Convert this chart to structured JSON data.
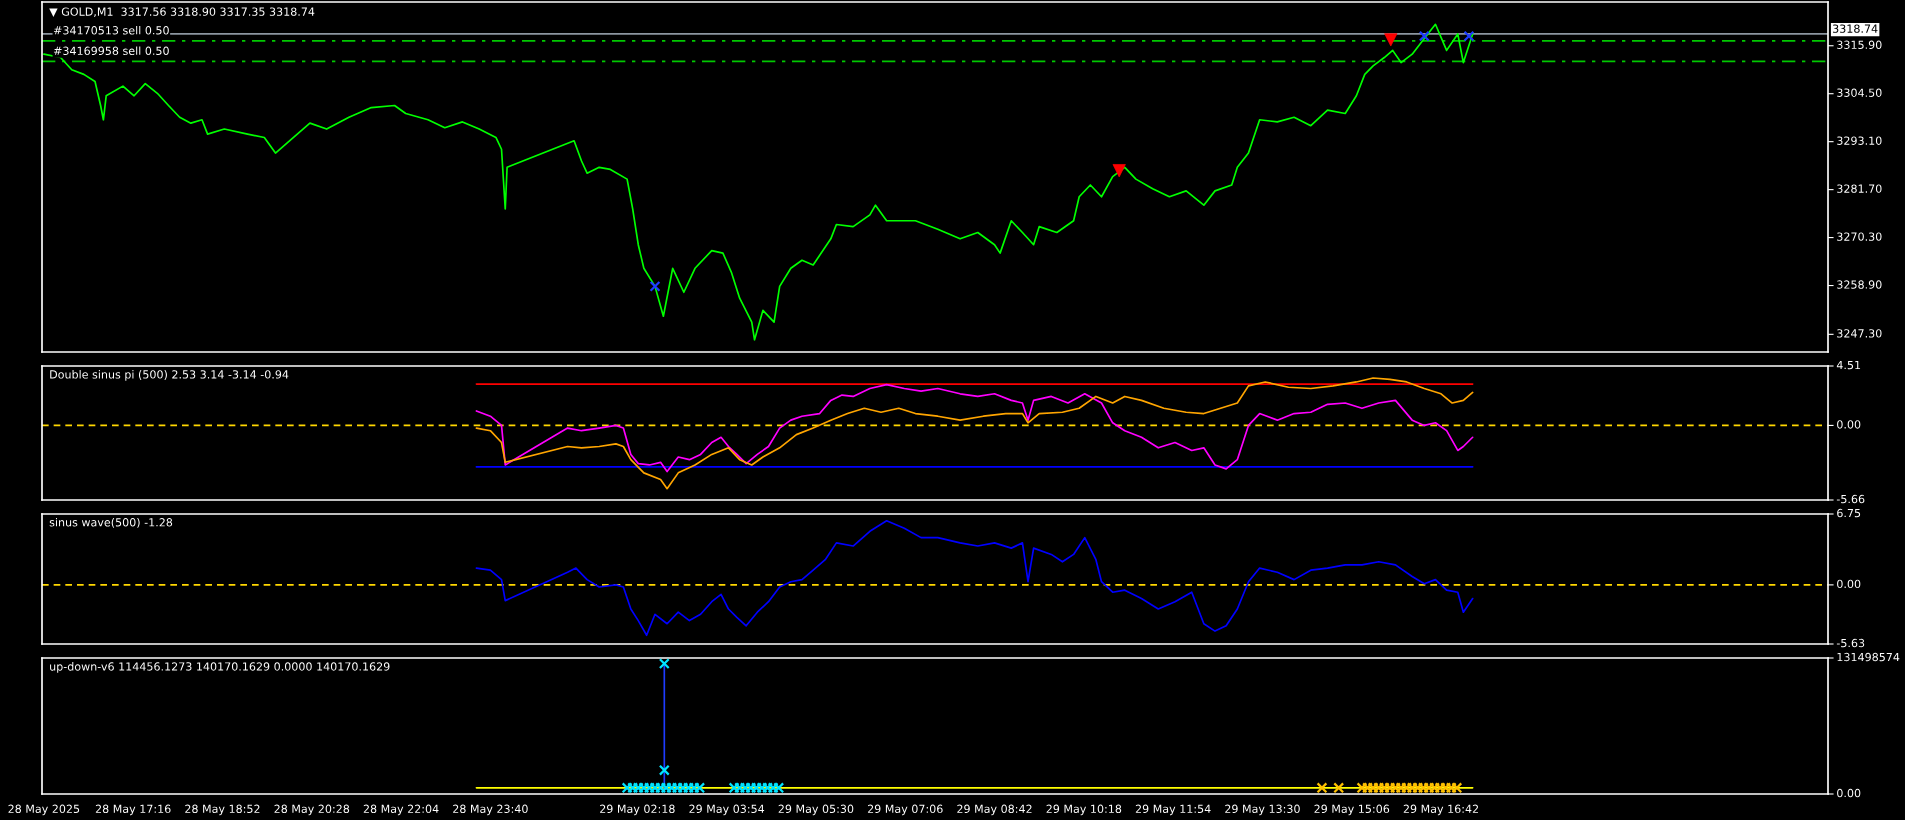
{
  "chart_data": [
    {
      "type": "line",
      "title": "▼ GOLD,M1  3317.56 3318.90 3317.35 3318.74",
      "xlim": [
        "2025-05-28T15:38",
        "2025-05-29T23:38"
      ],
      "ylim": [
        3243.1,
        3326.3
      ],
      "tick_labels": "y",
      "grid": false,
      "legend": false,
      "yticks": [
        {
          "value": 3315.9,
          "label": "3315.90"
        },
        {
          "value": 3304.5,
          "label": "3304.50"
        },
        {
          "value": 3293.1,
          "label": "3293.10"
        },
        {
          "value": 3281.7,
          "label": "3281.70"
        },
        {
          "value": 3270.3,
          "label": "3270.30"
        },
        {
          "value": 3258.9,
          "label": "3258.90"
        },
        {
          "value": 3247.3,
          "label": "3247.30"
        }
      ],
      "ref_lines": [
        {
          "axis": "y",
          "value": 3318.74,
          "label": "3318.74",
          "color": "#8c96a0",
          "line_style": "solid"
        },
        {
          "axis": "y",
          "value": 3317.07,
          "label": "#34170513 sell 0.50",
          "color": "#00c800",
          "line_style": "dashed"
        },
        {
          "axis": "y",
          "value": 3312.2,
          "label": "#34169958 sell 0.50",
          "color": "#00c800",
          "line_style": "dashed"
        }
      ],
      "series": [
        {
          "color": "#00ff00",
          "x": [
            "2025-05-28T15:40",
            "2025-05-28T15:58",
            "2025-05-28T16:10",
            "2025-05-28T16:23",
            "2025-05-28T16:35",
            "2025-05-28T16:41",
            "2025-05-28T16:44",
            "2025-05-28T16:47",
            "2025-05-28T17:05",
            "2025-05-28T17:17",
            "2025-05-28T17:29",
            "2025-05-28T17:42",
            "2025-05-28T17:54",
            "2025-05-28T18:06",
            "2025-05-28T18:18",
            "2025-05-28T18:30",
            "2025-05-28T18:36",
            "2025-05-28T18:54",
            "2025-05-28T19:19",
            "2025-05-28T19:37",
            "2025-05-28T19:49",
            "2025-05-28T20:01",
            "2025-05-28T20:26",
            "2025-05-28T20:44",
            "2025-05-28T21:08",
            "2025-05-28T21:32",
            "2025-05-28T21:57",
            "2025-05-28T22:09",
            "2025-05-28T22:33",
            "2025-05-28T22:51",
            "2025-05-28T23:10",
            "2025-05-28T23:28",
            "2025-05-28T23:46",
            "2025-05-28T23:52",
            "2025-05-28T23:56",
            "2025-05-28T23:58",
            "2025-05-29T01:10",
            "2025-05-29T01:18",
            "2025-05-29T01:24",
            "2025-05-29T01:37",
            "2025-05-29T01:49",
            "2025-05-29T02:07",
            "2025-05-29T02:13",
            "2025-05-29T02:19",
            "2025-05-29T02:25",
            "2025-05-29T02:37",
            "2025-05-29T02:46",
            "2025-05-29T02:56",
            "2025-05-29T03:08",
            "2025-05-29T03:20",
            "2025-05-29T03:38",
            "2025-05-29T03:50",
            "2025-05-29T03:59",
            "2025-05-29T04:08",
            "2025-05-29T04:21",
            "2025-05-29T04:24",
            "2025-05-29T04:33",
            "2025-05-29T04:45",
            "2025-05-29T04:51",
            "2025-05-29T05:03",
            "2025-05-29T05:15",
            "2025-05-29T05:27",
            "2025-05-29T05:46",
            "2025-05-29T05:52",
            "2025-05-29T06:10",
            "2025-05-29T06:28",
            "2025-05-29T06:34",
            "2025-05-29T06:46",
            "2025-05-29T07:17",
            "2025-05-29T07:41",
            "2025-05-29T08:05",
            "2025-05-29T08:24",
            "2025-05-29T08:42",
            "2025-05-29T08:48",
            "2025-05-29T09:00",
            "2025-05-29T09:12",
            "2025-05-29T09:24",
            "2025-05-29T09:30",
            "2025-05-29T09:49",
            "2025-05-29T10:07",
            "2025-05-29T10:13",
            "2025-05-29T10:25",
            "2025-05-29T10:37",
            "2025-05-29T10:49",
            "2025-05-29T11:02",
            "2025-05-29T11:14",
            "2025-05-29T11:32",
            "2025-05-29T11:50",
            "2025-05-29T12:08",
            "2025-05-29T12:27",
            "2025-05-29T12:39",
            "2025-05-29T12:57",
            "2025-05-29T13:03",
            "2025-05-29T13:15",
            "2025-05-29T13:27",
            "2025-05-29T13:46",
            "2025-05-29T14:04",
            "2025-05-29T14:22",
            "2025-05-29T14:40",
            "2025-05-29T14:59",
            "2025-05-29T15:11",
            "2025-05-29T15:20",
            "2025-05-29T15:29",
            "2025-05-29T15:41",
            "2025-05-29T15:50",
            "2025-05-29T15:59",
            "2025-05-29T16:11",
            "2025-05-29T16:24",
            "2025-05-29T16:36",
            "2025-05-29T16:48",
            "2025-05-29T17:00",
            "2025-05-29T17:06",
            "2025-05-29T17:16"
          ],
          "values": [
            3313.9,
            3313.1,
            3310.2,
            3309.1,
            3307.4,
            3301.7,
            3298.3,
            3304.0,
            3306.3,
            3304.0,
            3306.9,
            3304.6,
            3301.7,
            3298.9,
            3297.5,
            3298.3,
            3294.9,
            3296.1,
            3294.9,
            3294.1,
            3290.4,
            3292.7,
            3297.5,
            3296.1,
            3298.9,
            3301.2,
            3301.7,
            3299.8,
            3298.3,
            3296.4,
            3297.8,
            3296.1,
            3294.1,
            3291.3,
            3277.1,
            3287.0,
            3293.3,
            3288.5,
            3285.6,
            3287.0,
            3286.5,
            3284.2,
            3277.1,
            3268.6,
            3263.0,
            3258.7,
            3251.6,
            3263.0,
            3257.3,
            3263.0,
            3267.2,
            3266.6,
            3262.1,
            3255.9,
            3250.2,
            3246.0,
            3253.0,
            3250.2,
            3258.7,
            3263.0,
            3264.9,
            3263.8,
            3270.0,
            3273.4,
            3272.9,
            3275.7,
            3278.0,
            3274.3,
            3274.3,
            3272.3,
            3270.0,
            3271.5,
            3268.6,
            3266.6,
            3274.3,
            3271.5,
            3268.6,
            3272.9,
            3271.5,
            3274.3,
            3280.0,
            3282.8,
            3280.0,
            3284.8,
            3287.0,
            3284.2,
            3281.9,
            3280.0,
            3281.4,
            3278.0,
            3281.4,
            3282.8,
            3287.0,
            3290.4,
            3298.3,
            3297.8,
            3298.9,
            3296.9,
            3300.6,
            3299.8,
            3304.0,
            3309.1,
            3311.1,
            3313.1,
            3314.8,
            3311.9,
            3313.9,
            3317.6,
            3321.0,
            3314.8,
            3318.7,
            3311.9,
            3318.7
          ]
        },
        {
          "type": "scatter",
          "color": "#ff0000",
          "marker": "triangle",
          "x": [
            "2025-05-29T10:56",
            "2025-05-29T15:48"
          ],
          "values": [
            3286.2,
            3317.3
          ]
        },
        {
          "type": "scatter",
          "color": "#1e3cff",
          "marker": "cross",
          "x": [
            "2025-05-29T02:37",
            "2025-05-29T16:24",
            "2025-05-29T17:12"
          ],
          "values": [
            3258.7,
            3318.2,
            3318.2
          ]
        }
      ]
    },
    {
      "type": "line",
      "title": "Double sinus pi (500) 2.53 3.14 -3.14 -0.94",
      "xlim": [
        "2025-05-28T15:38",
        "2025-05-29T23:38"
      ],
      "ylim": [
        -5.66,
        4.51
      ],
      "tick_labels": "y",
      "grid": false,
      "legend": false,
      "yticks": [
        4.51,
        {
          "value": 0,
          "label": "0.00"
        },
        -5.66
      ],
      "ref_lines": [
        {
          "axis": "y",
          "value": 0,
          "color": "#ffd700",
          "line_style": "dashed"
        }
      ],
      "series": [
        {
          "color": "#ff0000",
          "x": [
            "2025-05-28T23:25",
            "2025-05-29T17:16"
          ],
          "values": [
            3.14,
            3.14
          ]
        },
        {
          "color": "#0000ff",
          "x": [
            "2025-05-28T23:25",
            "2025-05-29T17:16"
          ],
          "values": [
            -3.14,
            -3.14
          ]
        },
        {
          "color": "#ff00ff",
          "x": [
            "2025-05-28T23:25",
            "2025-05-28T23:40",
            "2025-05-28T23:52",
            "2025-05-28T23:56",
            "2025-05-29T01:03",
            "2025-05-29T01:18",
            "2025-05-29T01:37",
            "2025-05-29T01:55",
            "2025-05-29T02:03",
            "2025-05-29T02:11",
            "2025-05-29T02:19",
            "2025-05-29T02:31",
            "2025-05-29T02:43",
            "2025-05-29T02:50",
            "2025-05-29T03:02",
            "2025-05-29T03:14",
            "2025-05-29T03:26",
            "2025-05-29T03:38",
            "2025-05-29T03:48",
            "2025-05-29T03:56",
            "2025-05-29T04:05",
            "2025-05-29T04:15",
            "2025-05-29T04:27",
            "2025-05-29T04:39",
            "2025-05-29T04:51",
            "2025-05-29T05:03",
            "2025-05-29T05:15",
            "2025-05-29T05:34",
            "2025-05-29T05:46",
            "2025-05-29T05:58",
            "2025-05-29T06:10",
            "2025-05-29T06:28",
            "2025-05-29T06:46",
            "2025-05-29T07:05",
            "2025-05-29T07:23",
            "2025-05-29T07:41",
            "2025-05-29T08:05",
            "2025-05-29T08:24",
            "2025-05-29T08:42",
            "2025-05-29T09:00",
            "2025-05-29T09:12",
            "2025-05-29T09:18",
            "2025-05-29T09:24",
            "2025-05-29T09:43",
            "2025-05-29T10:01",
            "2025-05-29T10:19",
            "2025-05-29T10:37",
            "2025-05-29T10:49",
            "2025-05-29T11:02",
            "2025-05-29T11:20",
            "2025-05-29T11:38",
            "2025-05-29T11:56",
            "2025-05-29T12:14",
            "2025-05-29T12:27",
            "2025-05-29T12:39",
            "2025-05-29T12:51",
            "2025-05-29T13:03",
            "2025-05-29T13:15",
            "2025-05-29T13:27",
            "2025-05-29T13:46",
            "2025-05-29T14:04",
            "2025-05-29T14:22",
            "2025-05-29T14:40",
            "2025-05-29T14:59",
            "2025-05-29T15:17",
            "2025-05-29T15:35",
            "2025-05-29T15:53",
            "2025-05-29T16:11",
            "2025-05-29T16:24",
            "2025-05-29T16:36",
            "2025-05-29T16:48",
            "2025-05-29T17:00",
            "2025-05-29T17:06",
            "2025-05-29T17:16"
          ],
          "values": [
            1.1,
            0.7,
            0,
            -3.0,
            -0.2,
            -0.4,
            -0.2,
            0,
            -0.2,
            -2.2,
            -2.9,
            -3.0,
            -2.8,
            -3.5,
            -2.4,
            -2.6,
            -2.2,
            -1.3,
            -0.9,
            -1.6,
            -2.2,
            -2.9,
            -2.2,
            -1.6,
            -0.2,
            0.4,
            0.7,
            0.9,
            1.9,
            2.3,
            2.2,
            2.8,
            3.1,
            2.8,
            2.6,
            2.8,
            2.4,
            2.2,
            2.4,
            1.9,
            1.7,
            0.4,
            1.9,
            2.2,
            1.7,
            2.4,
            1.7,
            0.2,
            -0.4,
            -0.9,
            -1.7,
            -1.3,
            -1.9,
            -1.7,
            -3.0,
            -3.3,
            -2.6,
            0,
            0.9,
            0.4,
            0.9,
            1.0,
            1.6,
            1.7,
            1.3,
            1.7,
            1.9,
            0.4,
            0,
            0.2,
            -0.4,
            -1.9,
            -1.6,
            -0.9
          ]
        },
        {
          "color": "#ffa500",
          "x": [
            "2025-05-28T23:25",
            "2025-05-28T23:40",
            "2025-05-28T23:52",
            "2025-05-28T23:56",
            "2025-05-29T01:03",
            "2025-05-29T01:18",
            "2025-05-29T01:37",
            "2025-05-29T01:55",
            "2025-05-29T02:03",
            "2025-05-29T02:11",
            "2025-05-29T02:25",
            "2025-05-29T02:43",
            "2025-05-29T02:50",
            "2025-05-29T03:02",
            "2025-05-29T03:20",
            "2025-05-29T03:38",
            "2025-05-29T03:56",
            "2025-05-29T04:08",
            "2025-05-29T04:21",
            "2025-05-29T04:33",
            "2025-05-29T04:51",
            "2025-05-29T05:09",
            "2025-05-29T05:27",
            "2025-05-29T05:46",
            "2025-05-29T06:04",
            "2025-05-29T06:22",
            "2025-05-29T06:40",
            "2025-05-29T06:59",
            "2025-05-29T07:17",
            "2025-05-29T07:41",
            "2025-05-29T08:05",
            "2025-05-29T08:30",
            "2025-05-29T08:54",
            "2025-05-29T09:12",
            "2025-05-29T09:18",
            "2025-05-29T09:30",
            "2025-05-29T09:55",
            "2025-05-29T10:13",
            "2025-05-29T10:31",
            "2025-05-29T10:49",
            "2025-05-29T11:02",
            "2025-05-29T11:20",
            "2025-05-29T11:44",
            "2025-05-29T12:08",
            "2025-05-29T12:27",
            "2025-05-29T12:45",
            "2025-05-29T13:03",
            "2025-05-29T13:15",
            "2025-05-29T13:33",
            "2025-05-29T13:58",
            "2025-05-29T14:22",
            "2025-05-29T14:46",
            "2025-05-29T15:11",
            "2025-05-29T15:29",
            "2025-05-29T15:47",
            "2025-05-29T16:05",
            "2025-05-29T16:24",
            "2025-05-29T16:42",
            "2025-05-29T16:54",
            "2025-05-29T17:06",
            "2025-05-29T17:16"
          ],
          "values": [
            -0.2,
            -0.4,
            -1.3,
            -2.8,
            -1.6,
            -1.7,
            -1.6,
            -1.4,
            -1.6,
            -2.6,
            -3.6,
            -4.1,
            -4.8,
            -3.6,
            -3.0,
            -2.2,
            -1.7,
            -2.6,
            -3.0,
            -2.4,
            -1.7,
            -0.7,
            -0.2,
            0.4,
            0.9,
            1.3,
            1.0,
            1.3,
            0.9,
            0.7,
            0.4,
            0.7,
            0.9,
            0.9,
            0.2,
            0.9,
            1.0,
            1.3,
            2.2,
            1.7,
            2.2,
            1.9,
            1.3,
            1.0,
            0.9,
            1.3,
            1.7,
            3.0,
            3.3,
            2.9,
            2.8,
            3.0,
            3.3,
            3.6,
            3.5,
            3.3,
            2.8,
            2.4,
            1.7,
            1.9,
            2.5
          ]
        }
      ]
    },
    {
      "type": "line",
      "title": "sinus wave(500) -1.28",
      "xlim": [
        "2025-05-28T15:38",
        "2025-05-29T23:38"
      ],
      "ylim": [
        -5.63,
        6.75
      ],
      "tick_labels": "y",
      "grid": false,
      "legend": false,
      "yticks": [
        6.75,
        {
          "value": 0,
          "label": "0.00"
        },
        -5.63
      ],
      "ref_lines": [
        {
          "axis": "y",
          "value": 0,
          "color": "#ffd700",
          "line_style": "dashed"
        }
      ],
      "series": [
        {
          "color": "#0000ff",
          "x": [
            "2025-05-28T23:25",
            "2025-05-28T23:40",
            "2025-05-28T23:52",
            "2025-05-28T23:56",
            "2025-05-29T01:03",
            "2025-05-29T01:12",
            "2025-05-29T01:24",
            "2025-05-29T01:37",
            "2025-05-29T01:55",
            "2025-05-29T02:03",
            "2025-05-29T02:11",
            "2025-05-29T02:19",
            "2025-05-29T02:28",
            "2025-05-29T02:37",
            "2025-05-29T02:50",
            "2025-05-29T03:02",
            "2025-05-29T03:14",
            "2025-05-29T03:26",
            "2025-05-29T03:38",
            "2025-05-29T03:48",
            "2025-05-29T03:56",
            "2025-05-29T04:05",
            "2025-05-29T04:15",
            "2025-05-29T04:27",
            "2025-05-29T04:39",
            "2025-05-29T04:51",
            "2025-05-29T05:03",
            "2025-05-29T05:15",
            "2025-05-29T05:27",
            "2025-05-29T05:40",
            "2025-05-29T05:52",
            "2025-05-29T06:10",
            "2025-05-29T06:28",
            "2025-05-29T06:46",
            "2025-05-29T07:05",
            "2025-05-29T07:23",
            "2025-05-29T07:41",
            "2025-05-29T08:05",
            "2025-05-29T08:24",
            "2025-05-29T08:42",
            "2025-05-29T09:00",
            "2025-05-29T09:12",
            "2025-05-29T09:18",
            "2025-05-29T09:24",
            "2025-05-29T09:43",
            "2025-05-29T09:55",
            "2025-05-29T10:07",
            "2025-05-29T10:19",
            "2025-05-29T10:31",
            "2025-05-29T10:37",
            "2025-05-29T10:49",
            "2025-05-29T11:02",
            "2025-05-29T11:20",
            "2025-05-29T11:38",
            "2025-05-29T11:56",
            "2025-05-29T12:14",
            "2025-05-29T12:27",
            "2025-05-29T12:39",
            "2025-05-29T12:51",
            "2025-05-29T13:03",
            "2025-05-29T13:15",
            "2025-05-29T13:27",
            "2025-05-29T13:46",
            "2025-05-29T14:04",
            "2025-05-29T14:22",
            "2025-05-29T14:40",
            "2025-05-29T14:59",
            "2025-05-29T15:17",
            "2025-05-29T15:35",
            "2025-05-29T15:53",
            "2025-05-29T16:11",
            "2025-05-29T16:24",
            "2025-05-29T16:36",
            "2025-05-29T16:48",
            "2025-05-29T17:00",
            "2025-05-29T17:06",
            "2025-05-29T17:16"
          ],
          "values": [
            1.6,
            1.4,
            0.5,
            -1.5,
            1.2,
            1.6,
            0.5,
            -0.2,
            0,
            -0.2,
            -2.3,
            -3.4,
            -4.8,
            -2.8,
            -3.7,
            -2.6,
            -3.4,
            -2.8,
            -1.6,
            -0.9,
            -2.3,
            -3.1,
            -3.9,
            -2.6,
            -1.6,
            -0.2,
            0.3,
            0.5,
            1.4,
            2.4,
            4.0,
            3.7,
            5.1,
            6.1,
            5.4,
            4.5,
            4.5,
            4.0,
            3.7,
            4.0,
            3.5,
            4.0,
            0.3,
            3.5,
            2.9,
            2.2,
            2.9,
            4.5,
            2.4,
            0.3,
            -0.7,
            -0.5,
            -1.3,
            -2.3,
            -1.6,
            -0.7,
            -3.7,
            -4.4,
            -3.9,
            -2.3,
            0.3,
            1.6,
            1.2,
            0.5,
            1.4,
            1.6,
            1.9,
            1.9,
            2.2,
            1.9,
            0.8,
            0.1,
            0.5,
            -0.5,
            -0.7,
            -2.6,
            -1.3
          ]
        }
      ]
    },
    {
      "type": "line",
      "title": "up-down-v6 114456.1273 140170.1629 0.0000 140170.1629",
      "xlim": [
        "2025-05-28T15:38",
        "2025-05-29T23:38"
      ],
      "ylim": [
        0,
        131498574
      ],
      "grid": false,
      "legend": false,
      "yticks": [
        131498574,
        {
          "value": 0,
          "label": "0.00"
        }
      ],
      "xticks": [
        {
          "value": "2025-05-28T15:40",
          "label": "28 May 2025"
        },
        {
          "value": "2025-05-28T17:16",
          "label": "28 May 17:16"
        },
        {
          "value": "2025-05-28T18:52",
          "label": "28 May 18:52"
        },
        {
          "value": "2025-05-28T20:28",
          "label": "28 May 20:28"
        },
        {
          "value": "2025-05-28T22:04",
          "label": "28 May 22:04"
        },
        {
          "value": "2025-05-28T23:40",
          "label": "28 May 23:40"
        },
        {
          "value": "2025-05-29T02:18",
          "label": "29 May 02:18"
        },
        {
          "value": "2025-05-29T03:54",
          "label": "29 May 03:54"
        },
        {
          "value": "2025-05-29T05:30",
          "label": "29 May 05:30"
        },
        {
          "value": "2025-05-29T07:06",
          "label": "29 May 07:06"
        },
        {
          "value": "2025-05-29T08:42",
          "label": "29 May 08:42"
        },
        {
          "value": "2025-05-29T10:18",
          "label": "29 May 10:18"
        },
        {
          "value": "2025-05-29T11:54",
          "label": "29 May 11:54"
        },
        {
          "value": "2025-05-29T13:30",
          "label": "29 May 13:30"
        },
        {
          "value": "2025-05-29T15:06",
          "label": "29 May 15:06"
        },
        {
          "value": "2025-05-29T16:42",
          "label": "29 May 16:42"
        }
      ],
      "series": [
        {
          "color": "#ffff00",
          "x": [
            "2025-05-28T23:25",
            "2025-05-29T17:16"
          ],
          "values": [
            6000000,
            6000000
          ]
        },
        {
          "color": "#1e3cff",
          "x": [
            "2025-05-29T02:47",
            "2025-05-29T02:47"
          ],
          "values": [
            6000000,
            126000000
          ]
        },
        {
          "type": "scatter",
          "color": "#00e5ff",
          "marker": "cross",
          "x": [
            "2025-05-29T02:07",
            "2025-05-29T02:13",
            "2025-05-29T02:19",
            "2025-05-29T02:25",
            "2025-05-29T02:31",
            "2025-05-29T02:37",
            "2025-05-29T02:43",
            "2025-05-29T02:47",
            "2025-05-29T02:47",
            "2025-05-29T02:49",
            "2025-05-29T02:55",
            "2025-05-29T03:01",
            "2025-05-29T03:07",
            "2025-05-29T03:13",
            "2025-05-29T03:19",
            "2025-05-29T03:25",
            "2025-05-29T04:02",
            "2025-05-29T04:08",
            "2025-05-29T04:14",
            "2025-05-29T04:20",
            "2025-05-29T04:26",
            "2025-05-29T04:32",
            "2025-05-29T04:38",
            "2025-05-29T04:44",
            "2025-05-29T04:50"
          ],
          "values": [
            6000000,
            6000000,
            6000000,
            6000000,
            6000000,
            6000000,
            6000000,
            126000000,
            23000000,
            6000000,
            6000000,
            6000000,
            6000000,
            6000000,
            6000000,
            6000000,
            6000000,
            6000000,
            6000000,
            6000000,
            6000000,
            6000000,
            6000000,
            6000000,
            6000000
          ]
        },
        {
          "type": "scatter",
          "color": "#ffc000",
          "marker": "cross",
          "x": [
            "2025-05-29T14:34",
            "2025-05-29T14:52",
            "2025-05-29T15:17",
            "2025-05-29T15:23",
            "2025-05-29T15:29",
            "2025-05-29T15:35",
            "2025-05-29T15:41",
            "2025-05-29T15:47",
            "2025-05-29T15:53",
            "2025-05-29T15:59",
            "2025-05-29T16:05",
            "2025-05-29T16:11",
            "2025-05-29T16:17",
            "2025-05-29T16:23",
            "2025-05-29T16:29",
            "2025-05-29T16:35",
            "2025-05-29T16:41",
            "2025-05-29T16:47",
            "2025-05-29T16:53",
            "2025-05-29T16:59"
          ],
          "values": [
            6000000,
            6000000,
            6000000,
            6000000,
            6000000,
            6000000,
            6000000,
            6000000,
            6000000,
            6000000,
            6000000,
            6000000,
            6000000,
            6000000,
            6000000,
            6000000,
            6000000,
            6000000,
            6000000,
            6000000
          ]
        }
      ]
    }
  ]
}
